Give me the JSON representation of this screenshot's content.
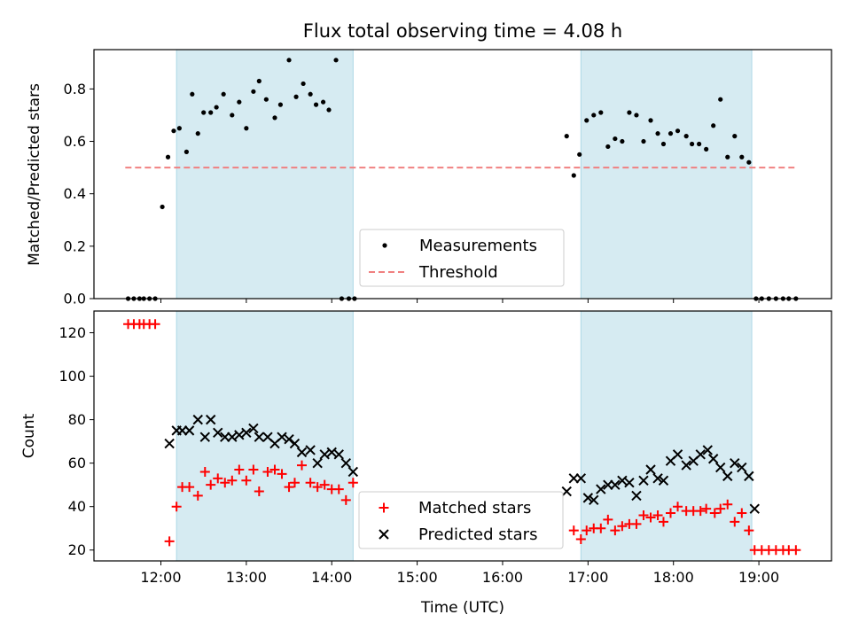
{
  "chart_data": [
    {
      "type": "scatter",
      "title": "Flux total observing time = 4.08 h",
      "xlabel": "",
      "ylabel": "Matched/Predicted stars",
      "xlim": [
        "11:13",
        "19:51"
      ],
      "ylim": [
        0,
        0.95
      ],
      "yticks": [
        0.0,
        0.2,
        0.4,
        0.6,
        0.8
      ],
      "yticklabels": [
        "0.0",
        "0.2",
        "0.4",
        "0.6",
        "0.8"
      ],
      "xticks": [
        "12:00",
        "13:00",
        "14:00",
        "15:00",
        "16:00",
        "17:00",
        "18:00",
        "19:00"
      ],
      "shaded_intervals": [
        [
          "12:11",
          "14:15"
        ],
        [
          "16:55",
          "18:55"
        ]
      ],
      "threshold": {
        "y": 0.5,
        "x": [
          "11:35",
          "19:25"
        ],
        "color": "#f08080"
      },
      "legend": {
        "position": "lower center",
        "entries": [
          "Measurements",
          "Threshold"
        ]
      },
      "series": [
        {
          "name": "Measurements",
          "marker": "dot",
          "color": "#000000",
          "x": [
            "11:37",
            "11:41",
            "11:45",
            "11:48",
            "11:52",
            "11:56",
            "12:01",
            "12:05",
            "12:09",
            "12:13",
            "12:18",
            "12:22",
            "12:26",
            "12:30",
            "12:35",
            "12:39",
            "12:44",
            "12:50",
            "12:55",
            "13:00",
            "13:05",
            "13:09",
            "13:14",
            "13:20",
            "13:24",
            "13:30",
            "13:35",
            "13:40",
            "13:45",
            "13:49",
            "13:54",
            "13:58",
            "14:03",
            "14:07",
            "14:12",
            "14:16",
            "16:45",
            "16:50",
            "16:54",
            "16:59",
            "17:04",
            "17:09",
            "17:14",
            "17:19",
            "17:24",
            "17:29",
            "17:34",
            "17:39",
            "17:44",
            "17:49",
            "17:53",
            "17:58",
            "18:03",
            "18:09",
            "18:13",
            "18:18",
            "18:23",
            "18:28",
            "18:33",
            "18:38",
            "18:43",
            "18:48",
            "18:53",
            "18:58",
            "19:02",
            "19:07",
            "19:12",
            "19:17",
            "19:21",
            "19:26"
          ],
          "y": [
            0,
            0,
            0,
            0,
            0,
            0,
            0.35,
            0.54,
            0.64,
            0.65,
            0.56,
            0.78,
            0.63,
            0.71,
            0.71,
            0.73,
            0.78,
            0.7,
            0.75,
            0.65,
            0.79,
            0.83,
            0.76,
            0.69,
            0.74,
            0.91,
            0.77,
            0.82,
            0.78,
            0.74,
            0.75,
            0.72,
            0.91,
            0,
            0,
            0,
            0.62,
            0.47,
            0.55,
            0.68,
            0.7,
            0.71,
            0.58,
            0.61,
            0.6,
            0.71,
            0.7,
            0.6,
            0.68,
            0.63,
            0.59,
            0.63,
            0.64,
            0.62,
            0.59,
            0.59,
            0.57,
            0.66,
            0.76,
            0.54,
            0.62,
            0.54,
            0.52,
            0,
            0,
            0,
            0,
            0,
            0,
            0
          ]
        }
      ]
    },
    {
      "type": "scatter",
      "title": "",
      "xlabel": "Time (UTC)",
      "ylabel": "Count",
      "xlim": [
        "11:13",
        "19:51"
      ],
      "ylim": [
        15,
        130
      ],
      "yticks": [
        20,
        40,
        60,
        80,
        100,
        120
      ],
      "yticklabels": [
        "20",
        "40",
        "60",
        "80",
        "100",
        "120"
      ],
      "xticks": [
        "12:00",
        "13:00",
        "14:00",
        "15:00",
        "16:00",
        "17:00",
        "18:00",
        "19:00"
      ],
      "xticklabels": [
        "12:00",
        "13:00",
        "14:00",
        "15:00",
        "16:00",
        "17:00",
        "18:00",
        "19:00"
      ],
      "shaded_intervals": [
        [
          "12:11",
          "14:15"
        ],
        [
          "16:55",
          "18:55"
        ]
      ],
      "legend": {
        "position": "lower center",
        "entries": [
          "Matched stars",
          "Predicted stars"
        ]
      },
      "series": [
        {
          "name": "Matched stars",
          "marker": "plus",
          "color": "#ff0000",
          "x": [
            "11:37",
            "11:41",
            "11:45",
            "11:48",
            "11:52",
            "11:56",
            "12:06",
            "12:11",
            "12:15",
            "12:20",
            "12:26",
            "12:31",
            "12:35",
            "12:40",
            "12:45",
            "12:50",
            "12:55",
            "13:00",
            "13:05",
            "13:09",
            "13:15",
            "13:20",
            "13:25",
            "13:30",
            "13:34",
            "13:39",
            "13:45",
            "13:50",
            "13:55",
            "14:00",
            "14:05",
            "14:10",
            "14:15",
            "16:50",
            "16:55",
            "16:59",
            "17:04",
            "17:09",
            "17:14",
            "17:19",
            "17:24",
            "17:29",
            "17:34",
            "17:39",
            "17:44",
            "17:49",
            "17:53",
            "17:58",
            "18:03",
            "18:09",
            "18:14",
            "18:19",
            "18:23",
            "18:29",
            "18:33",
            "18:38",
            "18:43",
            "18:48",
            "18:53",
            "18:57",
            "19:02",
            "19:07",
            "19:12",
            "19:17",
            "19:21",
            "19:26"
          ],
          "y": [
            124,
            124,
            124,
            124,
            124,
            124,
            24,
            40,
            49,
            49,
            45,
            56,
            50,
            53,
            51,
            52,
            57,
            52,
            57,
            47,
            56,
            57,
            55,
            49,
            51,
            59,
            51,
            49,
            50,
            48,
            48,
            43,
            51,
            29,
            25,
            29,
            30,
            30,
            34,
            29,
            31,
            32,
            32,
            36,
            35,
            36,
            33,
            37,
            40,
            38,
            38,
            38,
            39,
            37,
            39,
            41,
            33,
            37,
            29,
            20,
            20,
            20,
            20,
            20,
            20,
            20
          ]
        },
        {
          "name": "Predicted stars",
          "marker": "x",
          "color": "#000000",
          "x": [
            "12:06",
            "12:11",
            "12:15",
            "12:20",
            "12:26",
            "12:31",
            "12:35",
            "12:40",
            "12:45",
            "12:50",
            "12:55",
            "13:00",
            "13:05",
            "13:09",
            "13:15",
            "13:20",
            "13:25",
            "13:30",
            "13:34",
            "13:39",
            "13:45",
            "13:50",
            "13:55",
            "14:00",
            "14:05",
            "14:10",
            "14:15",
            "16:45",
            "16:50",
            "16:55",
            "17:00",
            "17:04",
            "17:09",
            "17:14",
            "17:19",
            "17:24",
            "17:29",
            "17:34",
            "17:39",
            "17:44",
            "17:49",
            "17:53",
            "17:58",
            "18:03",
            "18:09",
            "18:14",
            "18:19",
            "18:24",
            "18:28",
            "18:33",
            "18:38",
            "18:43",
            "18:48",
            "18:53",
            "18:57"
          ],
          "y": [
            69,
            75,
            75,
            75,
            80,
            72,
            80,
            74,
            72,
            72,
            73,
            74,
            76,
            72,
            72,
            69,
            72,
            71,
            69,
            65,
            66,
            60,
            64,
            65,
            64,
            60,
            56,
            47,
            53,
            53,
            44,
            43,
            48,
            50,
            50,
            52,
            51,
            45,
            52,
            57,
            53,
            52,
            61,
            64,
            59,
            61,
            64,
            66,
            62,
            58,
            54,
            60,
            58,
            54,
            39
          ]
        }
      ]
    }
  ]
}
